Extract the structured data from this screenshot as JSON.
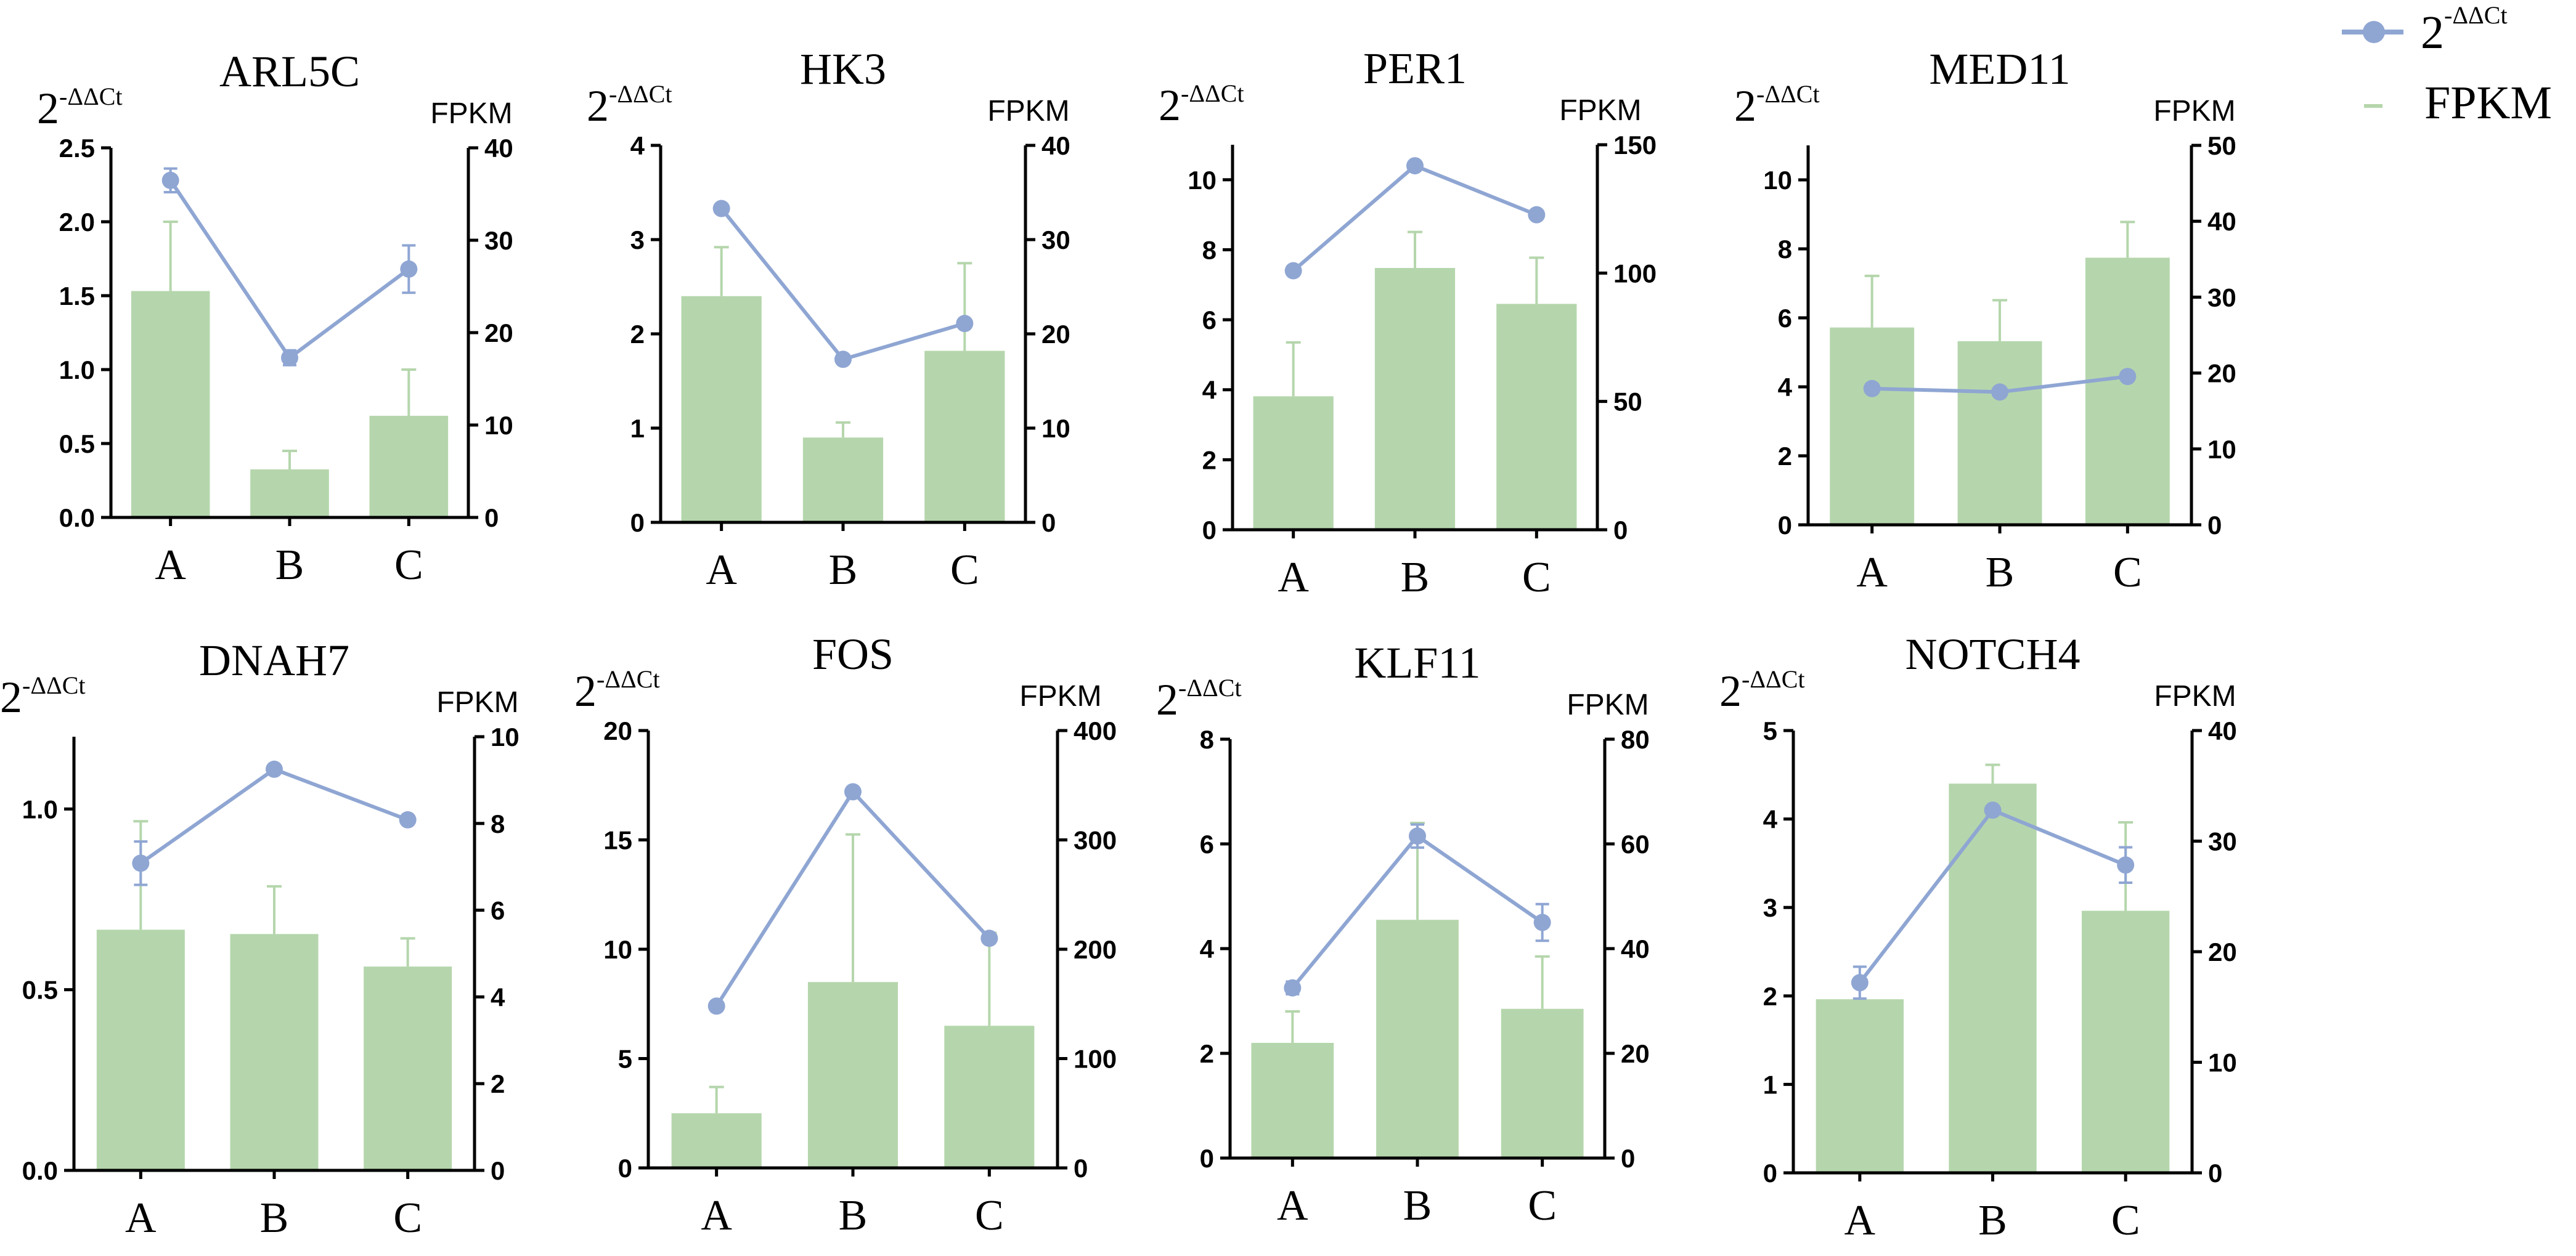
{
  "legend": {
    "line_label_base": "2",
    "line_label_sup": "-ΔΔCt",
    "bar_label": "FPKM"
  },
  "colors": {
    "line": "#8fa6d3",
    "bar": "#b5d6ac",
    "errorbar_bar": "#b5d6ac",
    "axis": "#000000"
  },
  "chart_data": [
    {
      "type": "bar+line",
      "title": "ARL5C",
      "categories": [
        "A",
        "B",
        "C"
      ],
      "left_axis": {
        "label_base": "2",
        "label_sup": "-ΔΔCt",
        "ylim": [
          0,
          2.5
        ],
        "ticks": [
          "0.0",
          "0.5",
          "1.0",
          "1.5",
          "2.0",
          "2.5"
        ]
      },
      "right_axis": {
        "label": "FPKM",
        "ylim": [
          0,
          40
        ],
        "ticks": [
          "0",
          "10",
          "20",
          "30",
          "40"
        ]
      },
      "series": [
        {
          "name": "FPKM",
          "kind": "bar",
          "axis": "right",
          "values": [
            24.5,
            5.2,
            11.0
          ],
          "errors": [
            7.5,
            2.0,
            5.0
          ]
        },
        {
          "name": "2-ΔΔCt",
          "kind": "line",
          "axis": "left",
          "values": [
            2.28,
            1.08,
            1.68
          ],
          "errors": [
            0.08,
            0.05,
            0.16
          ]
        }
      ]
    },
    {
      "type": "bar+line",
      "title": "HK3",
      "categories": [
        "A",
        "B",
        "C"
      ],
      "left_axis": {
        "label_base": "2",
        "label_sup": "-ΔΔCt",
        "ylim": [
          0,
          4
        ],
        "ticks": [
          "0",
          "1",
          "2",
          "3",
          "4"
        ]
      },
      "right_axis": {
        "label": "FPKM",
        "ylim": [
          0,
          40
        ],
        "ticks": [
          "0",
          "10",
          "20",
          "30",
          "40"
        ]
      },
      "series": [
        {
          "name": "FPKM",
          "kind": "bar",
          "axis": "right",
          "values": [
            24.0,
            9.0,
            18.2
          ],
          "errors": [
            5.2,
            1.6,
            9.3
          ]
        },
        {
          "name": "2-ΔΔCt",
          "kind": "line",
          "axis": "left",
          "values": [
            3.33,
            1.73,
            2.11
          ],
          "errors": [
            0.0,
            0.0,
            0.0
          ]
        }
      ]
    },
    {
      "type": "bar+line",
      "title": "PER1",
      "categories": [
        "A",
        "B",
        "C"
      ],
      "left_axis": {
        "label_base": "2",
        "label_sup": "-ΔΔCt",
        "ylim": [
          0,
          11
        ],
        "ticks": [
          "0",
          "2",
          "4",
          "6",
          "8",
          "10"
        ]
      },
      "right_axis": {
        "label": "FPKM",
        "ylim": [
          0,
          150
        ],
        "ticks": [
          "0",
          "50",
          "100",
          "150"
        ]
      },
      "series": [
        {
          "name": "FPKM",
          "kind": "bar",
          "axis": "right",
          "values": [
            52,
            102,
            88
          ],
          "errors": [
            21,
            14,
            18
          ]
        },
        {
          "name": "2-ΔΔCt",
          "kind": "line",
          "axis": "left",
          "values": [
            7.4,
            10.4,
            9.0
          ],
          "errors": [
            0.0,
            0.0,
            0.0
          ]
        }
      ]
    },
    {
      "type": "bar+line",
      "title": "MED11",
      "categories": [
        "A",
        "B",
        "C"
      ],
      "left_axis": {
        "label_base": "2",
        "label_sup": "-ΔΔCt",
        "ylim": [
          0,
          11
        ],
        "ticks": [
          "0",
          "2",
          "4",
          "6",
          "8",
          "10"
        ]
      },
      "right_axis": {
        "label": "FPKM",
        "ylim": [
          0,
          50
        ],
        "ticks": [
          "0",
          "10",
          "20",
          "30",
          "40",
          "50"
        ]
      },
      "series": [
        {
          "name": "FPKM",
          "kind": "bar",
          "axis": "right",
          "values": [
            26.0,
            24.2,
            35.2
          ],
          "errors": [
            6.8,
            5.4,
            4.7
          ]
        },
        {
          "name": "2-ΔΔCt",
          "kind": "line",
          "axis": "left",
          "values": [
            3.95,
            3.85,
            4.3
          ],
          "errors": [
            0.0,
            0.0,
            0.0
          ]
        }
      ]
    },
    {
      "type": "bar+line",
      "title": "DNAH7",
      "categories": [
        "A",
        "B",
        "C"
      ],
      "left_axis": {
        "label_base": "2",
        "label_sup": "-ΔΔCt",
        "ylim": [
          0,
          1.2
        ],
        "ticks": [
          "0.0",
          "0.5",
          "1.0"
        ]
      },
      "right_axis": {
        "label": "FPKM",
        "ylim": [
          0,
          10
        ],
        "ticks": [
          "0",
          "2",
          "4",
          "6",
          "8",
          "10"
        ]
      },
      "series": [
        {
          "name": "FPKM",
          "kind": "bar",
          "axis": "right",
          "values": [
            5.55,
            5.45,
            4.7
          ],
          "errors": [
            2.5,
            1.1,
            0.65
          ]
        },
        {
          "name": "2-ΔΔCt",
          "kind": "line",
          "axis": "left",
          "values": [
            0.85,
            1.11,
            0.97
          ],
          "errors": [
            0.06,
            0.0,
            0.0
          ]
        }
      ]
    },
    {
      "type": "bar+line",
      "title": "FOS",
      "categories": [
        "A",
        "B",
        "C"
      ],
      "left_axis": {
        "label_base": "2",
        "label_sup": "-ΔΔCt",
        "ylim": [
          0,
          20
        ],
        "ticks": [
          "0",
          "5",
          "10",
          "15",
          "20"
        ]
      },
      "right_axis": {
        "label": "FPKM",
        "ylim": [
          0,
          400
        ],
        "ticks": [
          "0",
          "100",
          "200",
          "300",
          "400"
        ]
      },
      "series": [
        {
          "name": "FPKM",
          "kind": "bar",
          "axis": "right",
          "values": [
            50,
            170,
            130
          ],
          "errors": [
            24,
            135,
            85
          ]
        },
        {
          "name": "2-ΔΔCt",
          "kind": "line",
          "axis": "left",
          "values": [
            7.4,
            17.2,
            10.5
          ],
          "errors": [
            0.0,
            0.0,
            0.0
          ]
        }
      ]
    },
    {
      "type": "bar+line",
      "title": "KLF11",
      "categories": [
        "A",
        "B",
        "C"
      ],
      "left_axis": {
        "label_base": "2",
        "label_sup": "-ΔΔCt",
        "ylim": [
          0,
          8
        ],
        "ticks": [
          "0",
          "2",
          "4",
          "6",
          "8"
        ]
      },
      "right_axis": {
        "label": "FPKM",
        "ylim": [
          0,
          80
        ],
        "ticks": [
          "0",
          "20",
          "40",
          "60",
          "80"
        ]
      },
      "series": [
        {
          "name": "FPKM",
          "kind": "bar",
          "axis": "right",
          "values": [
            22.0,
            45.5,
            28.5
          ],
          "errors": [
            6.0,
            18.5,
            10.0
          ]
        },
        {
          "name": "2-ΔΔCt",
          "kind": "line",
          "axis": "left",
          "values": [
            3.25,
            6.15,
            4.5
          ],
          "errors": [
            0.12,
            0.22,
            0.35
          ]
        }
      ]
    },
    {
      "type": "bar+line",
      "title": "NOTCH4",
      "categories": [
        "A",
        "B",
        "C"
      ],
      "left_axis": {
        "label_base": "2",
        "label_sup": "-ΔΔCt",
        "ylim": [
          0,
          5
        ],
        "ticks": [
          "0",
          "1",
          "2",
          "3",
          "4",
          "5"
        ]
      },
      "right_axis": {
        "label": "FPKM",
        "ylim": [
          0,
          40
        ],
        "ticks": [
          "0",
          "10",
          "20",
          "30",
          "40"
        ]
      },
      "series": [
        {
          "name": "FPKM",
          "kind": "bar",
          "axis": "right",
          "values": [
            15.7,
            35.2,
            23.7
          ],
          "errors": [
            0.0,
            1.7,
            8.0
          ]
        },
        {
          "name": "2-ΔΔCt",
          "kind": "line",
          "axis": "left",
          "values": [
            2.15,
            4.1,
            3.48
          ],
          "errors": [
            0.18,
            0.0,
            0.2
          ]
        }
      ]
    }
  ]
}
